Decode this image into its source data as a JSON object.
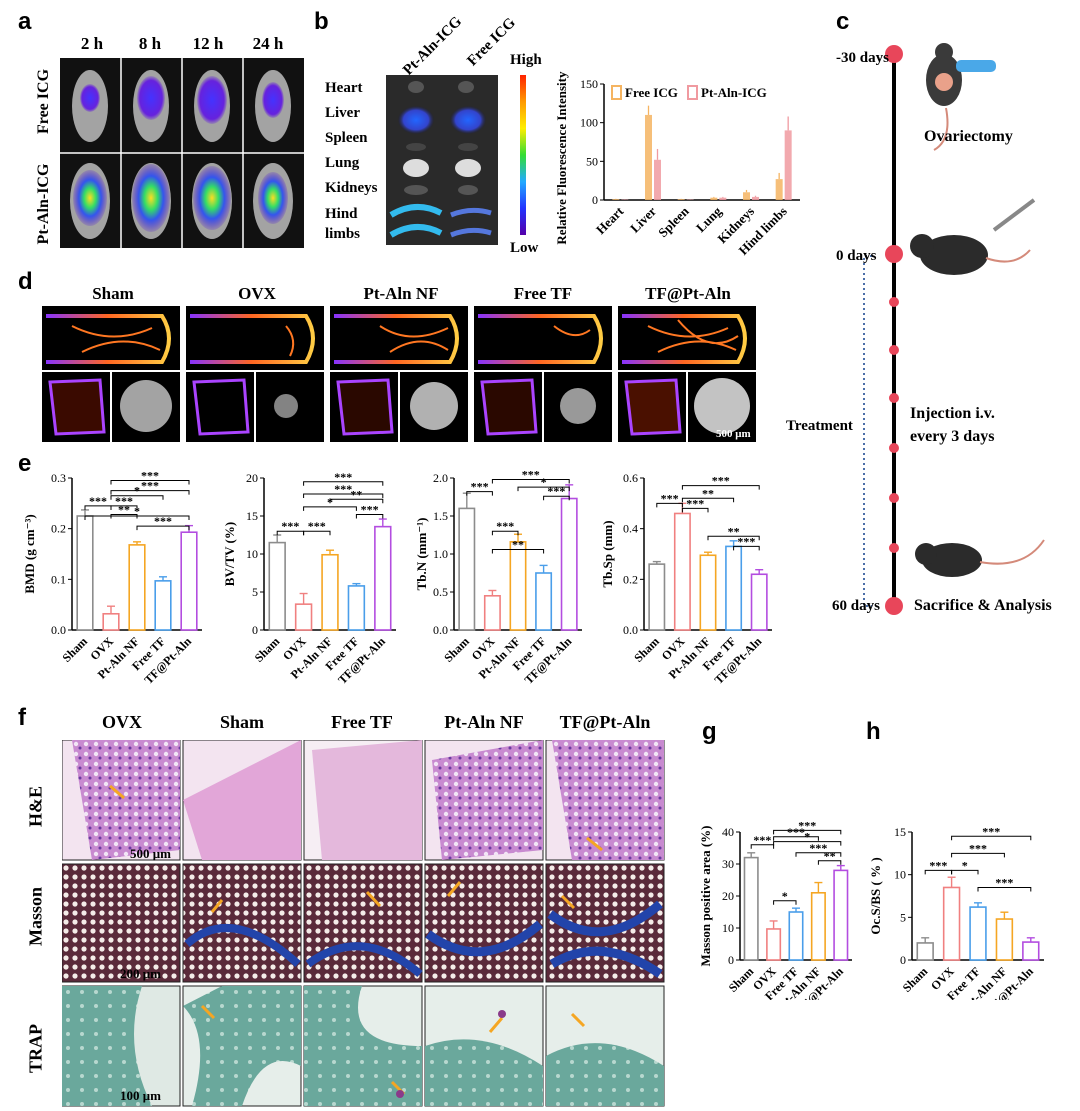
{
  "panel_labels": [
    "a",
    "b",
    "c",
    "d",
    "e",
    "f",
    "g",
    "h"
  ],
  "a": {
    "time_points": [
      "2 h",
      "8 h",
      "12 h",
      "24 h"
    ],
    "rows": [
      "Free ICG",
      "Pt-Aln-ICG"
    ]
  },
  "b": {
    "column_headers": [
      "Pt-Aln-ICG",
      "Free ICG"
    ],
    "organs": [
      "Heart",
      "Liver",
      "Spleen",
      "Lung",
      "Kidneys",
      "Hind limbs"
    ],
    "scale_high": "High",
    "scale_low": "Low"
  },
  "c": {
    "day_labels": [
      "-30 days",
      "0 days",
      "60 days"
    ],
    "events": [
      "Ovariectomy",
      "Injection i.v.",
      "every 3 days",
      "Sacrifice & Analysis"
    ],
    "treatment_label": "Treatment"
  },
  "d": {
    "groups": [
      "Sham",
      "OVX",
      "Pt-Aln NF",
      "Free TF",
      "TF@Pt-Aln"
    ],
    "scale_bar": "500 μm"
  },
  "f": {
    "groups": [
      "OVX",
      "Sham",
      "Free TF",
      "Pt-Aln NF",
      "TF@Pt-Aln"
    ],
    "stains": [
      "H&E",
      "Masson",
      "TRAP"
    ],
    "scale_bars": [
      "500 μm",
      "200 μm",
      "100 μm"
    ]
  },
  "colors": {
    "sham": "#8c8c8c",
    "ovx": "#f08080",
    "ptaln": "#f5a623",
    "freetf": "#4a9eea",
    "tfptaln": "#b34de0",
    "free_icg": "#f5b461",
    "ptaln_icg": "#f09aa0",
    "timeline_dot": "#e8465a"
  },
  "chart_data": [
    {
      "id": "b-chart",
      "type": "bar",
      "ylabel": "Relative Fluorescence Intensity (a.u.)",
      "categories": [
        "Heart",
        "Liver",
        "Spleen",
        "Lung",
        "Kidneys",
        "Hind limbs"
      ],
      "ylim": [
        0,
        150
      ],
      "yticks": [
        0,
        50,
        100,
        150
      ],
      "legend": "top-left",
      "series": [
        {
          "name": "Free ICG",
          "values": [
            1,
            110,
            1,
            3,
            10,
            27
          ],
          "errors": [
            0.5,
            12,
            0.5,
            1,
            3,
            8
          ]
        },
        {
          "name": "Pt-Aln-ICG",
          "values": [
            0.5,
            52,
            0.5,
            3,
            4,
            90
          ],
          "errors": [
            0.3,
            14,
            0.3,
            1,
            1.5,
            18
          ]
        }
      ]
    },
    {
      "id": "e1",
      "type": "bar",
      "ylabel": "BMD (g cm⁻³)",
      "categories": [
        "Sham",
        "OVX",
        "Pt-Aln NF",
        "Free TF",
        "TF@Pt-Aln"
      ],
      "values": [
        0.225,
        0.032,
        0.168,
        0.097,
        0.193
      ],
      "errors": [
        0.012,
        0.015,
        0.006,
        0.008,
        0.013
      ],
      "ylim": [
        0,
        0.3
      ],
      "yticks": [
        0.0,
        0.1,
        0.2,
        0.3
      ],
      "tick_labels": [
        "0.0",
        "0.1",
        "0.2",
        "0.3"
      ],
      "sig_labels": [
        "***",
        "***",
        "***",
        "*",
        "**",
        "***",
        "*",
        "***"
      ]
    },
    {
      "id": "e2",
      "type": "bar",
      "ylabel": "BV/TV (%)",
      "categories": [
        "Sham",
        "OVX",
        "Pt-Aln NF",
        "Free TF",
        "TF@Pt-Aln"
      ],
      "values": [
        11.5,
        3.4,
        9.9,
        5.8,
        13.6
      ],
      "errors": [
        1.0,
        1.4,
        0.6,
        0.3,
        1.0
      ],
      "ylim": [
        0,
        20
      ],
      "yticks": [
        0,
        5,
        10,
        15,
        20
      ],
      "tick_labels": [
        "0",
        "5",
        "10",
        "15",
        "20"
      ],
      "sig_labels": [
        "***",
        "***",
        "*",
        "**",
        "***",
        "***",
        "***"
      ]
    },
    {
      "id": "e3",
      "type": "bar",
      "ylabel": "Tb.N (mm⁻¹)",
      "categories": [
        "Sham",
        "OVX",
        "Pt-Aln NF",
        "Free TF",
        "TF@Pt-Aln"
      ],
      "values": [
        1.6,
        0.45,
        1.16,
        0.75,
        1.73
      ],
      "errors": [
        0.2,
        0.07,
        0.1,
        0.1,
        0.18
      ],
      "ylim": [
        0,
        2.0
      ],
      "yticks": [
        0,
        0.5,
        1.0,
        1.5,
        2.0
      ],
      "tick_labels": [
        "0.0",
        "0.5",
        "1.0",
        "1.5",
        "2.0"
      ],
      "sig_labels": [
        "***",
        "***",
        "**",
        "*",
        "***",
        "***"
      ]
    },
    {
      "id": "e4",
      "type": "bar",
      "ylabel": "Tb.Sp (mm)",
      "categories": [
        "Sham",
        "OVX",
        "Pt-Aln NF",
        "Free TF",
        "TF@Pt-Aln"
      ],
      "values": [
        0.26,
        0.46,
        0.295,
        0.33,
        0.22
      ],
      "errors": [
        0.01,
        0.04,
        0.012,
        0.022,
        0.018
      ],
      "ylim": [
        0,
        0.6
      ],
      "yticks": [
        0.0,
        0.2,
        0.4,
        0.6
      ],
      "tick_labels": [
        "0.0",
        "0.2",
        "0.4",
        "0.6"
      ],
      "sig_labels": [
        "***",
        "**",
        "***",
        "***",
        "**",
        "***"
      ]
    },
    {
      "id": "g",
      "type": "bar",
      "ylabel": "Masson positive area (%)",
      "categories": [
        "Sham",
        "OVX",
        "Free TF",
        "Pt-Aln NF",
        "TF@Pt-Aln"
      ],
      "values": [
        32,
        9.7,
        15,
        21,
        28
      ],
      "errors": [
        1.5,
        2.5,
        1.2,
        3.2,
        1.5
      ],
      "ylim": [
        0,
        40
      ],
      "yticks": [
        0,
        10,
        20,
        30,
        40
      ],
      "tick_labels": [
        "0",
        "10",
        "20",
        "30",
        "40"
      ],
      "sig_labels": [
        "***",
        "***",
        "***",
        "*",
        "*",
        "***",
        "**"
      ]
    },
    {
      "id": "h",
      "type": "bar",
      "ylabel": "Oc.S/BS ( % )",
      "categories": [
        "Sham",
        "OVX",
        "Free TF",
        "Pt-Aln NF",
        "TF@Pt-Aln"
      ],
      "values": [
        2.0,
        8.5,
        6.2,
        4.8,
        2.1
      ],
      "errors": [
        0.6,
        1.2,
        0.5,
        0.8,
        0.5
      ],
      "ylim": [
        0,
        15
      ],
      "yticks": [
        0,
        5,
        10,
        15
      ],
      "tick_labels": [
        "0",
        "5",
        "10",
        "15"
      ],
      "sig_labels": [
        "***",
        "***",
        "*",
        "***",
        "***"
      ]
    }
  ]
}
